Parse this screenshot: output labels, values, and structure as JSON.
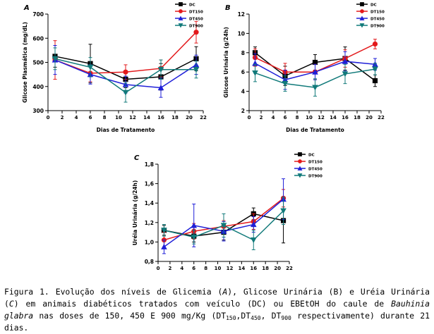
{
  "charts": [
    {
      "panel_label": "A",
      "chart_data": {
        "type": "line",
        "xlabel": "Dias de Tratamento",
        "ylabel": "Glicose Plasmática (mg/dL)",
        "xlim": [
          0,
          22
        ],
        "ylim": [
          300,
          700
        ],
        "xticks": [
          0,
          2,
          4,
          6,
          8,
          10,
          12,
          14,
          16,
          18,
          20,
          22
        ],
        "yticks": [
          300,
          400,
          500,
          600,
          700
        ],
        "legend_placement": "top-right",
        "x": [
          1,
          6,
          11,
          16,
          21
        ],
        "series": [
          {
            "name": "DC",
            "values": [
              525,
              495,
              430,
              440,
              515
            ],
            "err": [
              45,
              80,
              35,
              55,
              50
            ]
          },
          {
            "name": "DT150",
            "values": [
              510,
              455,
              460,
              475,
              625
            ],
            "err": [
              80,
              35,
              30,
              35,
              45
            ]
          },
          {
            "name": "DT450",
            "values": [
              510,
              450,
              408,
              395,
              490
            ],
            "err": [
              60,
              40,
              35,
              40,
              40
            ]
          },
          {
            "name": "DT900",
            "values": [
              515,
              480,
              375,
              470,
              470
            ],
            "err": [
              45,
              40,
              40,
              40,
              35
            ]
          }
        ]
      }
    },
    {
      "panel_label": "B",
      "chart_data": {
        "type": "line",
        "xlabel": "Dias de Tratamento",
        "ylabel": "Glicose Urinária (g/24h)",
        "xlim": [
          0,
          22
        ],
        "ylim": [
          2,
          12
        ],
        "xticks": [
          0,
          2,
          4,
          6,
          8,
          10,
          12,
          14,
          16,
          18,
          20,
          22
        ],
        "yticks": [
          2,
          4,
          6,
          8,
          10,
          12
        ],
        "legend_placement": "top-right",
        "x": [
          1,
          6,
          11,
          16,
          21
        ],
        "series": [
          {
            "name": "DC",
            "values": [
              8.0,
              5.6,
              7.0,
              7.4,
              5.1
            ],
            "err": [
              0.6,
              1.0,
              0.8,
              1.2,
              0.6
            ]
          },
          {
            "name": "DT150",
            "values": [
              7.5,
              6.0,
              6.0,
              7.4,
              8.9
            ],
            "err": [
              0.9,
              0.9,
              0.8,
              0.9,
              0.5
            ]
          },
          {
            "name": "DT450",
            "values": [
              6.9,
              5.2,
              6.0,
              7.1,
              6.8
            ],
            "err": [
              1.0,
              1.0,
              0.8,
              1.0,
              0.6
            ]
          },
          {
            "name": "DT900",
            "values": [
              5.9,
              4.8,
              4.4,
              5.8,
              6.3
            ],
            "err": [
              0.9,
              0.8,
              0.9,
              1.0,
              0.6
            ]
          }
        ]
      }
    },
    {
      "panel_label": "C",
      "chart_data": {
        "type": "line",
        "xlabel": "",
        "ylabel": "Uréia Urinária (g/24h)",
        "xlim": [
          0,
          22
        ],
        "ylim": [
          0.8,
          1.8
        ],
        "xticks": [
          0,
          2,
          4,
          6,
          8,
          10,
          12,
          14,
          16,
          18,
          20,
          22
        ],
        "yticks": [
          "0,8",
          "1,0",
          "1,2",
          "1,4",
          "1,6",
          "1,8"
        ],
        "legend_placement": "top-right",
        "x": [
          1,
          6,
          11,
          16,
          21
        ],
        "series": [
          {
            "name": "DC",
            "values": [
              1.12,
              1.06,
              1.1,
              1.29,
              1.22
            ],
            "err": [
              0.05,
              0.06,
              0.08,
              0.06,
              0.23
            ]
          },
          {
            "name": "DT150",
            "values": [
              1.02,
              1.11,
              1.16,
              1.21,
              1.45
            ],
            "err": [
              0.08,
              0.08,
              0.06,
              0.08,
              0.09
            ]
          },
          {
            "name": "DT450",
            "values": [
              0.95,
              1.17,
              1.11,
              1.18,
              1.44
            ],
            "err": [
              0.07,
              0.22,
              0.1,
              0.08,
              0.21
            ]
          },
          {
            "name": "DT900",
            "values": [
              1.12,
              1.05,
              1.17,
              1.02,
              1.32
            ],
            "err": [
              0.06,
              0.07,
              0.12,
              0.1,
              0.14
            ]
          }
        ]
      }
    }
  ],
  "series_colors": {
    "DC": "#000000",
    "DT150": "#e31a1c",
    "DT450": "#1f1fd8",
    "DT900": "#117a7a"
  },
  "series_markers": {
    "DC": "square",
    "DT150": "circle",
    "DT450": "triangle-up",
    "DT900": "triangle-down"
  },
  "caption": {
    "p1": "Figura 1. Evolução dos níveis de Glicemia (",
    "i1": "A",
    "p2": "), Glicose Urinária (B) e Uréia Urinária (",
    "i2": "C",
    "p3": ")  em animais diabéticos tratados com veículo (DC) ou EBEtOH do caule de ",
    "i3": "Bauhinia glabra",
    "p4": " nas doses de 150, 450 E 900 mg/Kg (DT",
    "sub1": "150",
    "p5": ",DT",
    "sub2": "450",
    "p6": ", DT",
    "sub3": "900",
    "p7": " respectivamente) durante 21 dias."
  }
}
